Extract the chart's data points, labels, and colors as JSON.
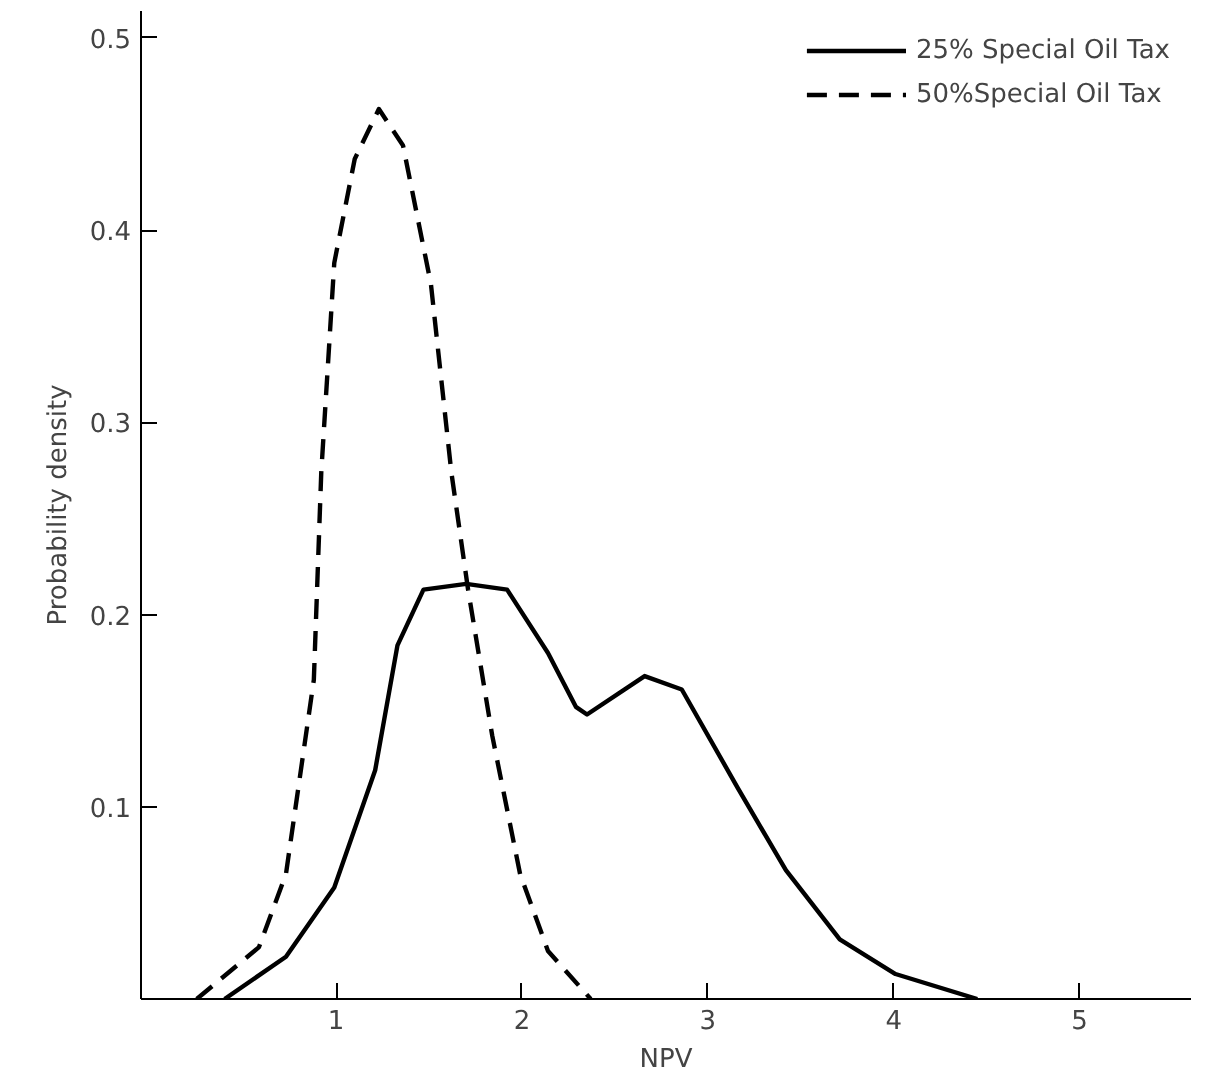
{
  "chart_data": {
    "type": "line",
    "xlabel": "NPV",
    "ylabel": "Probability density",
    "xlim": [
      -0.05,
      5.6
    ],
    "ylim": [
      0,
      0.514
    ],
    "xticks": [
      1,
      2,
      3,
      4,
      5
    ],
    "yticks": [
      0.1,
      0.2,
      0.3,
      0.4,
      0.5
    ],
    "grid": false,
    "legend": "top right",
    "marker": "none",
    "series": [
      {
        "name": "25% Special Oil Tax",
        "color": "#000000",
        "line_style": "solid",
        "x": [
          0.4,
          0.73,
          0.99,
          1.21,
          1.33,
          1.47,
          1.7,
          1.92,
          2.14,
          2.29,
          2.35,
          2.66,
          2.86,
          3.16,
          3.42,
          3.71,
          4.01,
          4.45
        ],
        "values": [
          0,
          0.022,
          0.058,
          0.119,
          0.184,
          0.213,
          0.216,
          0.213,
          0.18,
          0.152,
          0.148,
          0.168,
          0.161,
          0.11,
          0.067,
          0.031,
          0.013,
          0
        ]
      },
      {
        "name": "50%Special Oil Tax",
        "color": "#000000",
        "line_style": "dashed",
        "x": [
          0.25,
          0.585,
          0.73,
          0.88,
          0.92,
          0.99,
          1.1,
          1.23,
          1.36,
          1.51,
          1.62,
          1.71,
          1.84,
          1.99,
          2.14,
          2.37
        ],
        "values": [
          0,
          0.027,
          0.065,
          0.166,
          0.274,
          0.383,
          0.437,
          0.463,
          0.444,
          0.372,
          0.274,
          0.213,
          0.137,
          0.065,
          0.025,
          0
        ]
      }
    ]
  }
}
